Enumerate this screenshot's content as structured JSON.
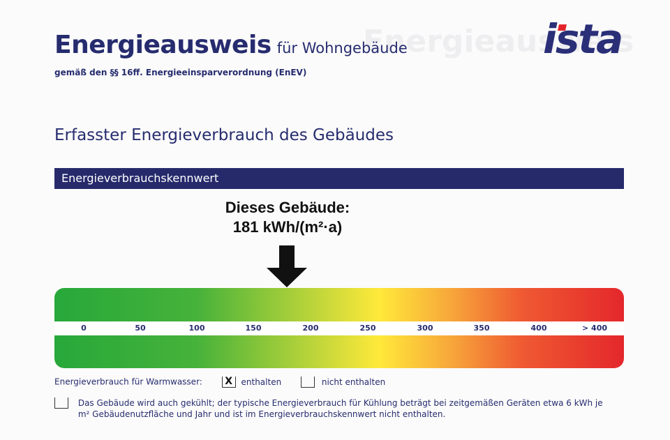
{
  "header": {
    "title_main": "Energieausweis",
    "title_suffix": "für Wohngebäude",
    "subtitle": "gemäß den §§ 16ff. Energieeinsparverordnung (EnEV)",
    "logo_text": "ista"
  },
  "section": {
    "heading": "Erfasster Energieverbrauch des Gebäudes",
    "bar_title": "Energieverbrauchskennwert"
  },
  "building": {
    "label": "Dieses Gebäude:",
    "value": "181 kWh/(m²·a)"
  },
  "scale": {
    "ticks": [
      "0",
      "50",
      "100",
      "150",
      "200",
      "250",
      "300",
      "350",
      "400",
      "> 400"
    ],
    "colors": {
      "low": "#27a83a",
      "mid": "#ffe93a",
      "high": "#e4272b"
    }
  },
  "warmwasser": {
    "label": "Energieverbrauch für Warmwasser:",
    "checked_mark": "X",
    "option_included": "enthalten",
    "option_not_included": "nicht enthalten"
  },
  "cooling_note": {
    "line1": "Das Gebäude wird auch gekühlt; der typische Energieverbrauch für Kühlung beträgt bei zeitgemäßen Geräten etwa 6 kWh je",
    "line2": "m² Gebäudenutzfläche und Jahr und ist im Energieverbrauchskennwert nicht enthalten."
  },
  "colors": {
    "brand_navy": "#262a6b",
    "logo_red": "#e3252b"
  }
}
